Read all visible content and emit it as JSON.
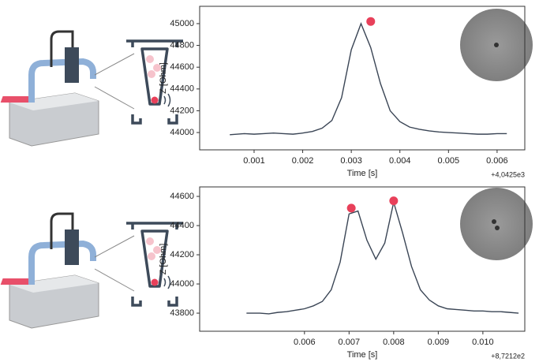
{
  "chart_data": [
    {
      "type": "line",
      "xlabel": "Time [s]",
      "ylabel": "Z [Ohm]",
      "offset_label": "+4,0425e3",
      "xlim": [
        -0.00012,
        0.00657
      ],
      "ylim": [
        43841,
        45159
      ],
      "xticks": [
        0.001,
        0.002,
        0.003,
        0.004,
        0.005,
        0.006
      ],
      "yticks": [
        44000,
        44200,
        44400,
        44600,
        44800,
        45000
      ],
      "x": [
        0.0005,
        0.0008,
        0.001,
        0.0012,
        0.0014,
        0.0016,
        0.0018,
        0.002,
        0.0022,
        0.0024,
        0.0026,
        0.0028,
        0.003,
        0.0032,
        0.0034,
        0.0036,
        0.0038,
        0.004,
        0.0042,
        0.0044,
        0.0046,
        0.0048,
        0.005,
        0.0052,
        0.0054,
        0.0056,
        0.0058,
        0.006,
        0.0062
      ],
      "series": [
        {
          "color": "#3a4555",
          "values": [
            43980,
            43990,
            43985,
            43990,
            43995,
            43990,
            43985,
            43995,
            44010,
            44040,
            44110,
            44320,
            44760,
            45000,
            44780,
            44450,
            44200,
            44100,
            44050,
            44030,
            44015,
            44005,
            44000,
            43995,
            43990,
            43985,
            43985,
            43990,
            43990
          ]
        }
      ],
      "peaks": {
        "color": "#e8405a",
        "x": [
          0.0034
        ],
        "values": [
          45020
        ]
      }
    },
    {
      "type": "line",
      "xlabel": "Time [s]",
      "ylabel": "Z [Ohm]",
      "offset_label": "+8,7212e2",
      "xlim": [
        0.00365,
        0.01094
      ],
      "ylim": [
        43676,
        44665
      ],
      "xticks": [
        0.006,
        0.007,
        0.008,
        0.009,
        {
          "value": 0.01,
          "label": "0.010"
        }
      ],
      "yticks": [
        43800,
        44000,
        44200,
        44400,
        44600
      ],
      "x": [
        0.0047,
        0.005,
        0.0052,
        0.0054,
        0.0056,
        0.0058,
        0.006,
        0.0062,
        0.0064,
        0.0066,
        0.0068,
        0.007,
        0.0072,
        0.0074,
        0.0076,
        0.0078,
        0.008,
        0.0082,
        0.0084,
        0.0086,
        0.0088,
        0.009,
        0.0092,
        0.0094,
        0.0096,
        0.0098,
        0.01,
        0.0102,
        0.0104,
        0.0106,
        0.0108
      ],
      "series": [
        {
          "color": "#3a4555",
          "values": [
            43800,
            43800,
            43795,
            43805,
            43810,
            43820,
            43830,
            43850,
            43880,
            43960,
            44150,
            44480,
            44500,
            44300,
            44170,
            44280,
            44560,
            44350,
            44120,
            43960,
            43890,
            43850,
            43830,
            43825,
            43820,
            43815,
            43815,
            43810,
            43810,
            43805,
            43800
          ]
        }
      ],
      "peaks": {
        "color": "#e8405a",
        "x": [
          0.00705,
          0.008
        ],
        "values": [
          44520,
          44570
        ]
      }
    }
  ]
}
